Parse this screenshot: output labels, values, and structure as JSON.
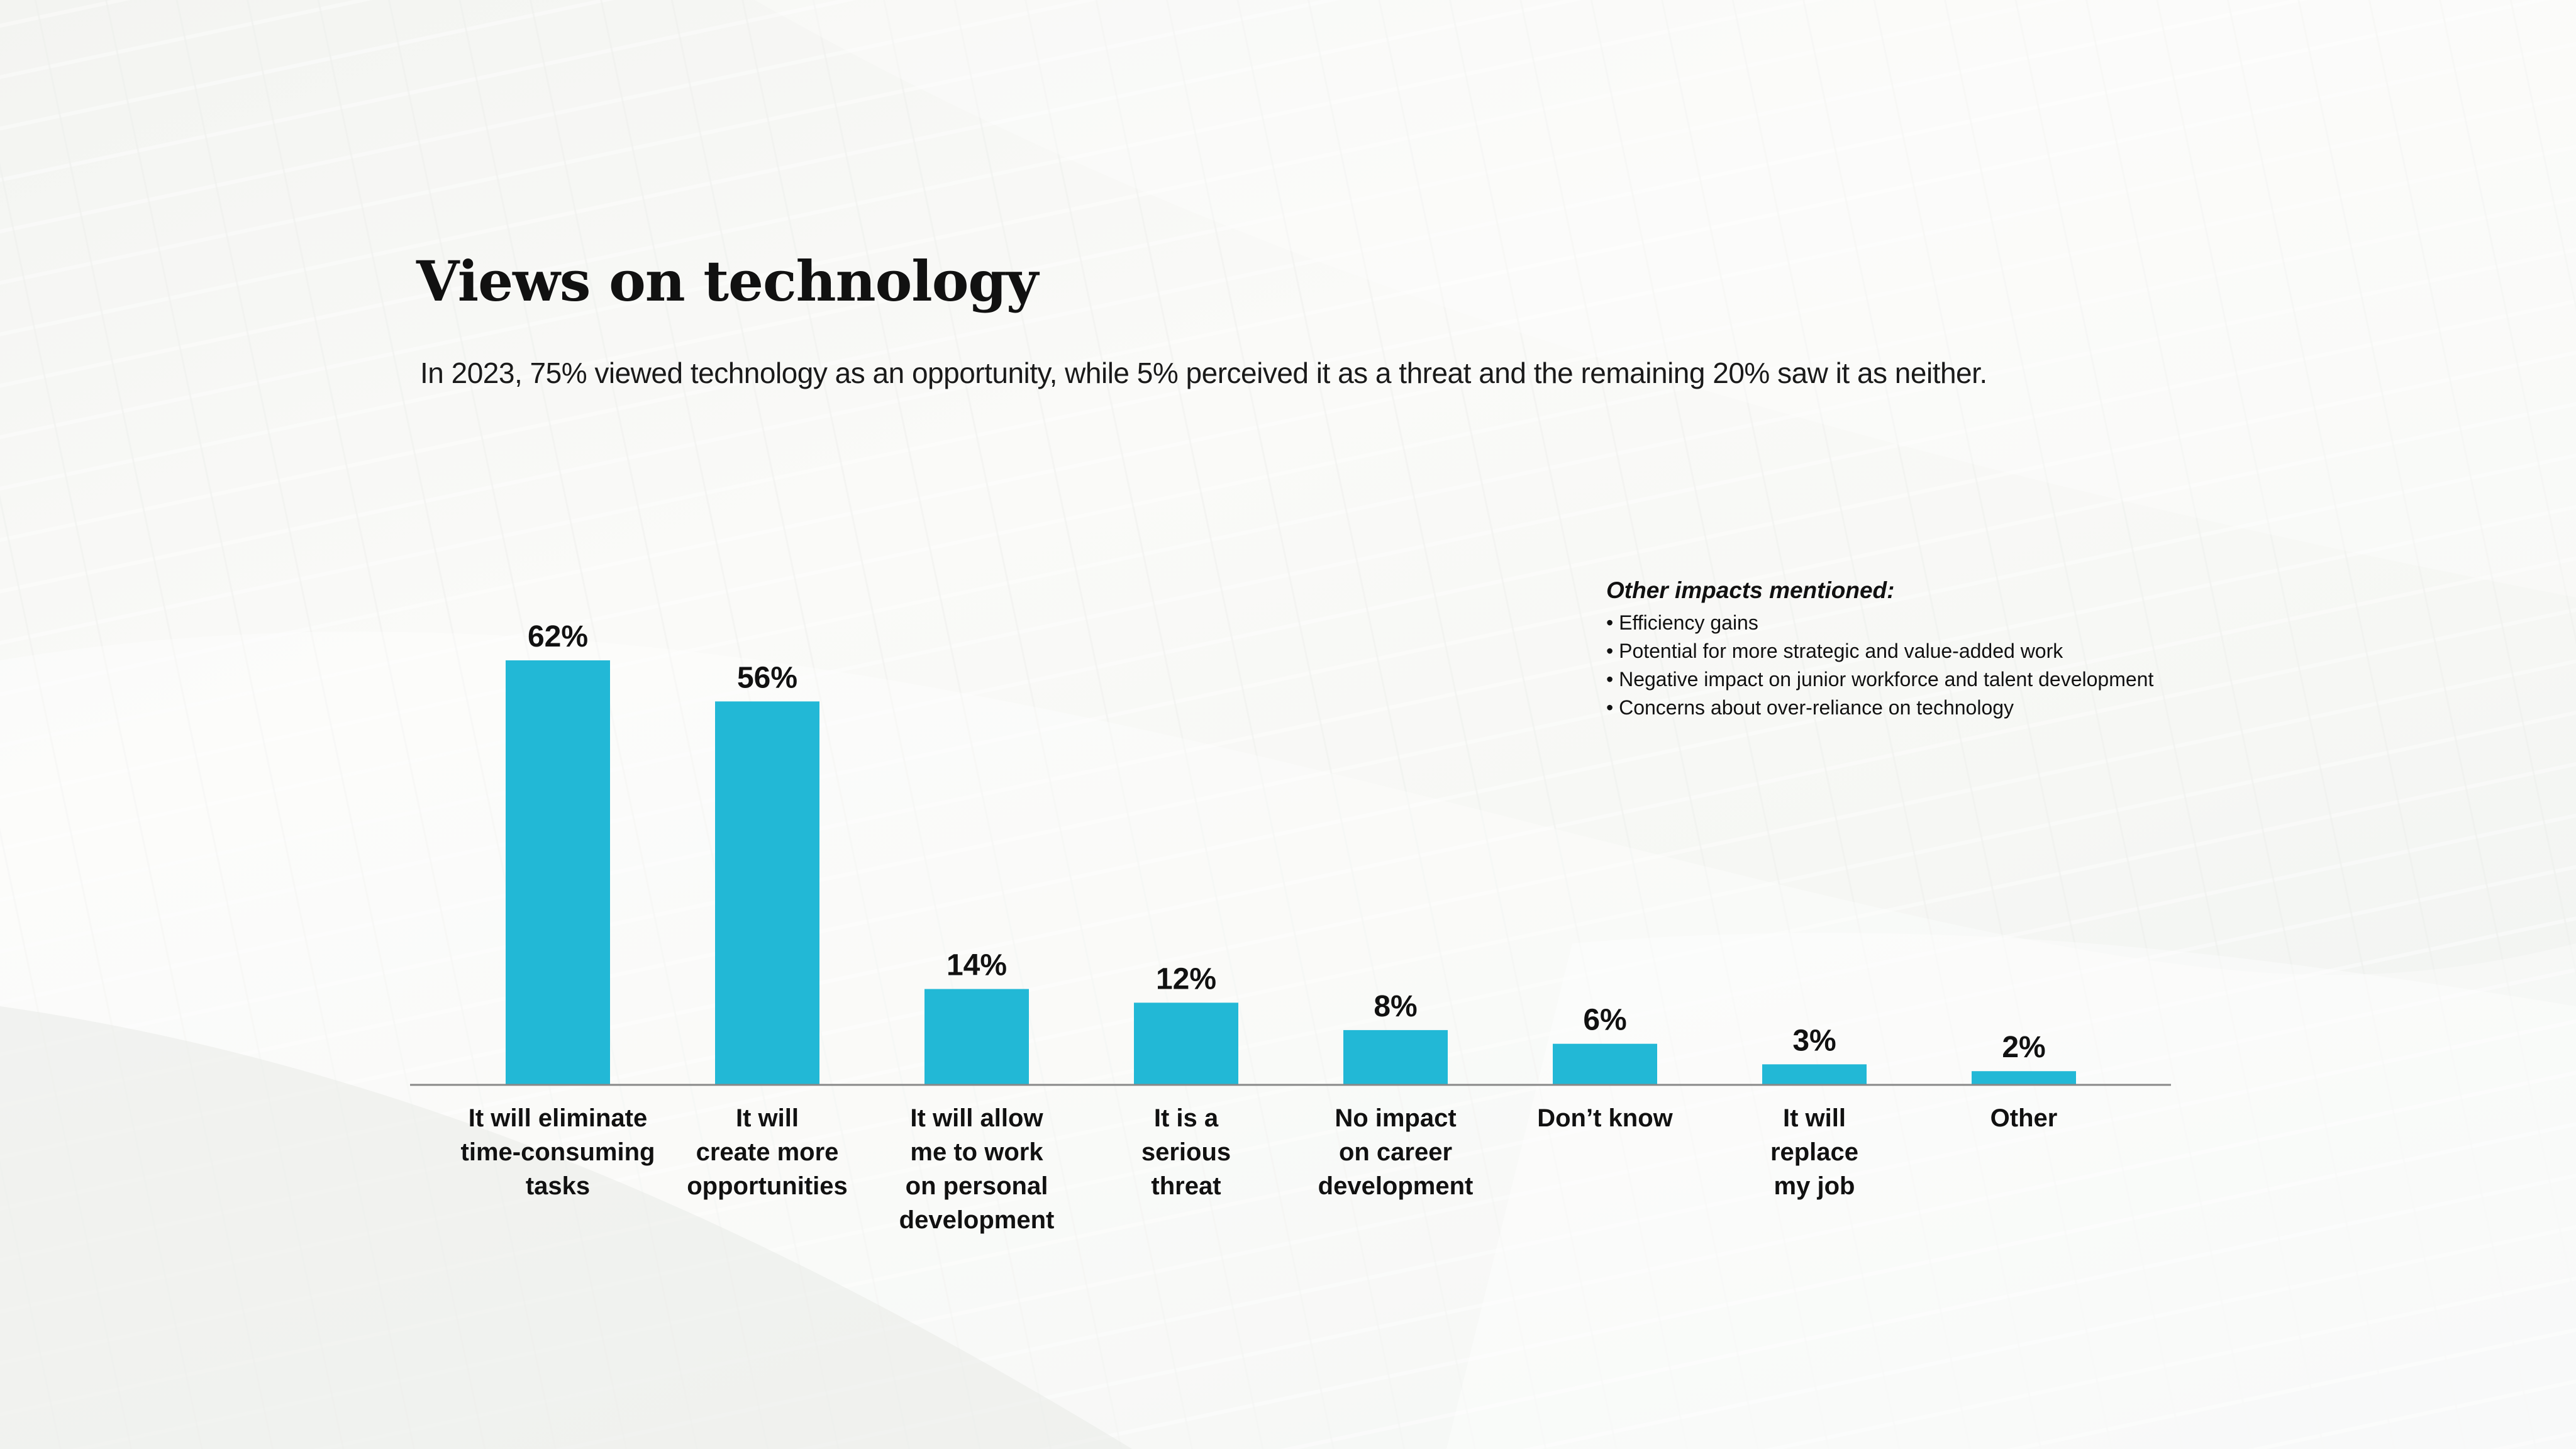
{
  "header": {
    "title": "Views on technology",
    "subtitle": "In 2023, 75% viewed technology as an opportunity, while 5% perceived it as a threat and the remaining 20% saw it as neither."
  },
  "notes": {
    "heading": "Other impacts mentioned:",
    "items": [
      "Efficiency gains",
      "Potential for more strategic and value-added work",
      "Negative impact on junior workforce and talent development",
      "Concerns about over-reliance on technology"
    ]
  },
  "chart_data": {
    "type": "bar",
    "categories": [
      "It will eliminate time-consuming tasks",
      "It will create more opportunities",
      "It will allow me to work on personal development",
      "It is a serious threat",
      "No impact on career development",
      "Don’t know",
      "It will replace my job",
      "Other"
    ],
    "category_lines": [
      [
        "It will eliminate",
        "time-consuming",
        "tasks"
      ],
      [
        "It will",
        "create more",
        "opportunities"
      ],
      [
        "It will allow",
        "me to work",
        "on personal",
        "development"
      ],
      [
        "It is a",
        "serious",
        "threat"
      ],
      [
        "No impact",
        "on career",
        "development"
      ],
      [
        "Don’t know"
      ],
      [
        "It will",
        "replace",
        "my job"
      ],
      [
        "Other"
      ]
    ],
    "values": [
      62,
      56,
      14,
      12,
      8,
      6,
      3,
      2
    ],
    "value_labels": [
      "62%",
      "56%",
      "14%",
      "12%",
      "8%",
      "6%",
      "3%",
      "2%"
    ],
    "unit": "%",
    "ylim": [
      0,
      70
    ],
    "grid": false,
    "bar_color": "#22b8d6",
    "axis_color": "#888888"
  }
}
